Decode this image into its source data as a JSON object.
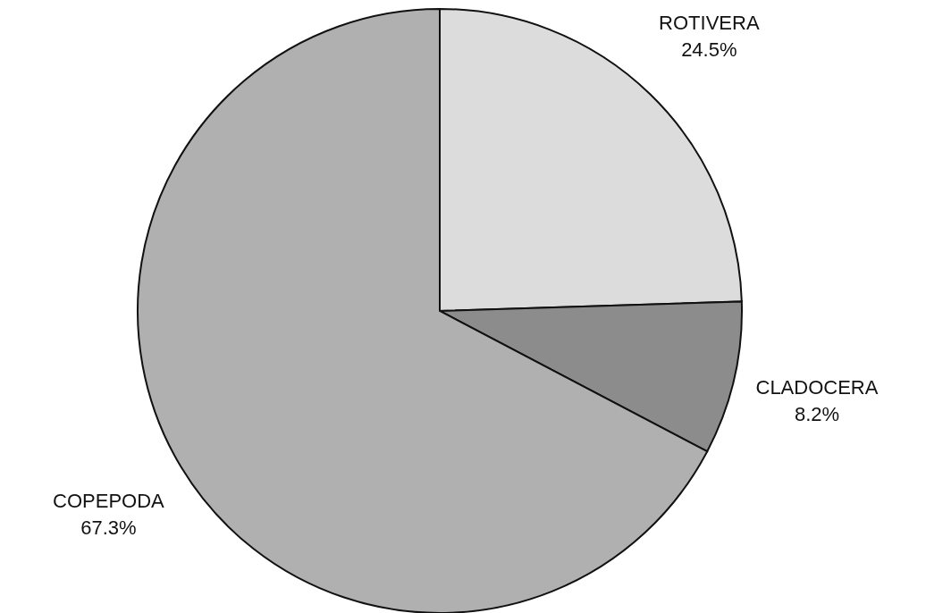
{
  "chart_data": {
    "type": "pie",
    "categories": [
      "ROTIVERA",
      "CLADOCERA",
      "COPEPODA"
    ],
    "values": [
      24.5,
      8.2,
      67.3
    ],
    "value_labels": [
      "24.5%",
      "8.2%",
      "67.3%"
    ],
    "colors": [
      "#dcdcdc",
      "#8c8c8c",
      "#b0b0b0"
    ]
  }
}
